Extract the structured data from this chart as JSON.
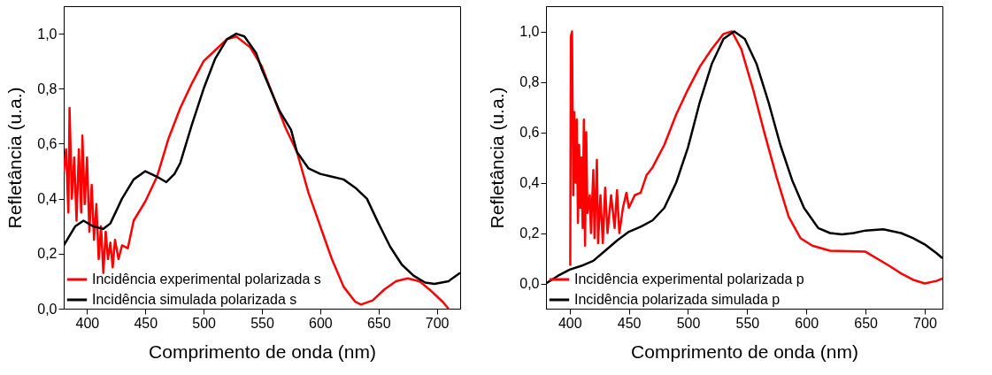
{
  "chart_data": [
    {
      "type": "line",
      "xlabel": "Comprimento de onda (nm)",
      "ylabel": "Refletância (u.a.)",
      "legend": "bottom left",
      "xlim": [
        380,
        720
      ],
      "xticks": [
        400,
        450,
        500,
        550,
        600,
        650,
        700
      ],
      "ylim": [
        0,
        1.1
      ],
      "yticks": [
        {
          "value": 0,
          "label": "0,0"
        },
        {
          "value": 0.2,
          "label": "0,2"
        },
        {
          "value": 0.4,
          "label": "0,4"
        },
        {
          "value": 0.6,
          "label": "0,6"
        },
        {
          "value": 0.8,
          "label": "0,8"
        },
        {
          "value": 1.0,
          "label": "1,0"
        }
      ],
      "series": [
        {
          "name": "Incidência experimental polarizada s",
          "color": "#ff0000",
          "x": [
            380,
            382,
            384,
            385,
            387,
            389,
            391,
            393,
            395,
            396,
            398,
            400,
            402,
            404,
            406,
            408,
            410,
            412,
            414,
            416,
            418,
            420,
            422,
            424,
            427,
            430,
            435,
            440,
            450,
            460,
            470,
            480,
            490,
            500,
            510,
            520,
            528,
            540,
            550,
            560,
            570,
            580,
            590,
            600,
            610,
            620,
            630,
            635,
            645,
            655,
            665,
            675,
            685,
            695,
            705,
            710
          ],
          "values": [
            0.5,
            0.58,
            0.35,
            0.73,
            0.4,
            0.55,
            0.32,
            0.58,
            0.35,
            0.63,
            0.38,
            0.55,
            0.28,
            0.45,
            0.25,
            0.38,
            0.18,
            0.3,
            0.13,
            0.28,
            0.18,
            0.24,
            0.15,
            0.25,
            0.18,
            0.23,
            0.22,
            0.32,
            0.39,
            0.48,
            0.62,
            0.73,
            0.82,
            0.9,
            0.94,
            0.98,
            0.99,
            0.95,
            0.88,
            0.77,
            0.66,
            0.57,
            0.42,
            0.3,
            0.18,
            0.08,
            0.025,
            0.015,
            0.03,
            0.07,
            0.1,
            0.11,
            0.1,
            0.065,
            0.025,
            0
          ]
        },
        {
          "name": "Incidência simulada polarizada s",
          "color": "#000000",
          "x": [
            380,
            390,
            397,
            405,
            414,
            420,
            430,
            440,
            450,
            460,
            468,
            475,
            480,
            490,
            500,
            510,
            520,
            528,
            535,
            545,
            550,
            565,
            575,
            580,
            590,
            600,
            610,
            620,
            630,
            640,
            650,
            660,
            670,
            680,
            690,
            698,
            710,
            720
          ],
          "values": [
            0.23,
            0.3,
            0.32,
            0.3,
            0.29,
            0.31,
            0.4,
            0.47,
            0.5,
            0.48,
            0.46,
            0.49,
            0.53,
            0.67,
            0.8,
            0.91,
            0.98,
            1.0,
            0.99,
            0.93,
            0.87,
            0.72,
            0.65,
            0.57,
            0.51,
            0.49,
            0.48,
            0.47,
            0.44,
            0.4,
            0.31,
            0.225,
            0.16,
            0.12,
            0.095,
            0.09,
            0.1,
            0.13
          ]
        }
      ]
    },
    {
      "type": "line",
      "xlabel": "Comprimento de onda (nm)",
      "ylabel": "Refletância (u.a.)",
      "legend": "bottom left",
      "xlim": [
        380,
        715
      ],
      "xticks": [
        400,
        450,
        500,
        550,
        600,
        650,
        700
      ],
      "ylim": [
        -0.1,
        1.1
      ],
      "yticks": [
        {
          "value": 0,
          "label": "0,0"
        },
        {
          "value": 0.2,
          "label": "0,2"
        },
        {
          "value": 0.4,
          "label": "0,4"
        },
        {
          "value": 0.6,
          "label": "0,6"
        },
        {
          "value": 0.8,
          "label": "0,8"
        },
        {
          "value": 1.0,
          "label": "1,0"
        }
      ],
      "series": [
        {
          "name": "Incidência experimental polarizada p",
          "color": "#ff0000",
          "x": [
            400.5,
            401,
            402,
            403,
            404,
            405,
            406,
            407,
            408,
            409,
            410,
            411,
            412,
            413,
            414,
            415,
            417,
            418,
            420,
            421,
            423,
            424,
            426,
            428,
            430,
            432,
            435,
            438,
            440,
            442,
            445,
            448,
            450,
            455,
            460,
            465,
            470,
            480,
            490,
            500,
            510,
            520,
            530,
            537,
            545,
            555,
            565,
            575,
            585,
            595,
            605,
            620,
            650,
            670,
            680,
            690,
            700,
            710,
            715
          ],
          "values": [
            0.07,
            0.98,
            1.0,
            0.35,
            0.68,
            0.4,
            0.65,
            0.24,
            0.55,
            0.3,
            0.5,
            0.22,
            0.65,
            0.15,
            0.6,
            0.28,
            0.35,
            0.2,
            0.45,
            0.18,
            0.49,
            0.16,
            0.35,
            0.16,
            0.38,
            0.2,
            0.35,
            0.22,
            0.37,
            0.2,
            0.3,
            0.36,
            0.3,
            0.35,
            0.36,
            0.43,
            0.46,
            0.55,
            0.67,
            0.77,
            0.86,
            0.93,
            0.99,
            1.0,
            0.93,
            0.77,
            0.59,
            0.42,
            0.265,
            0.18,
            0.15,
            0.13,
            0.126,
            0.07,
            0.04,
            0.015,
            0,
            0.01,
            0.02
          ]
        },
        {
          "name": "Incidência polarizada simulada p",
          "color": "#000000",
          "x": [
            380,
            390,
            400,
            410,
            420,
            430,
            440,
            450,
            460,
            470,
            480,
            490,
            500,
            510,
            520,
            530,
            539,
            548,
            558,
            568,
            578,
            588,
            598,
            610,
            620,
            630,
            640,
            650,
            665,
            680,
            690,
            700,
            710,
            715
          ],
          "values": [
            0.0,
            0.03,
            0.055,
            0.07,
            0.09,
            0.13,
            0.17,
            0.205,
            0.225,
            0.25,
            0.3,
            0.4,
            0.54,
            0.72,
            0.87,
            0.97,
            1.0,
            0.97,
            0.87,
            0.72,
            0.55,
            0.41,
            0.3,
            0.22,
            0.2,
            0.195,
            0.2,
            0.21,
            0.215,
            0.2,
            0.18,
            0.155,
            0.12,
            0.1
          ]
        }
      ]
    }
  ]
}
